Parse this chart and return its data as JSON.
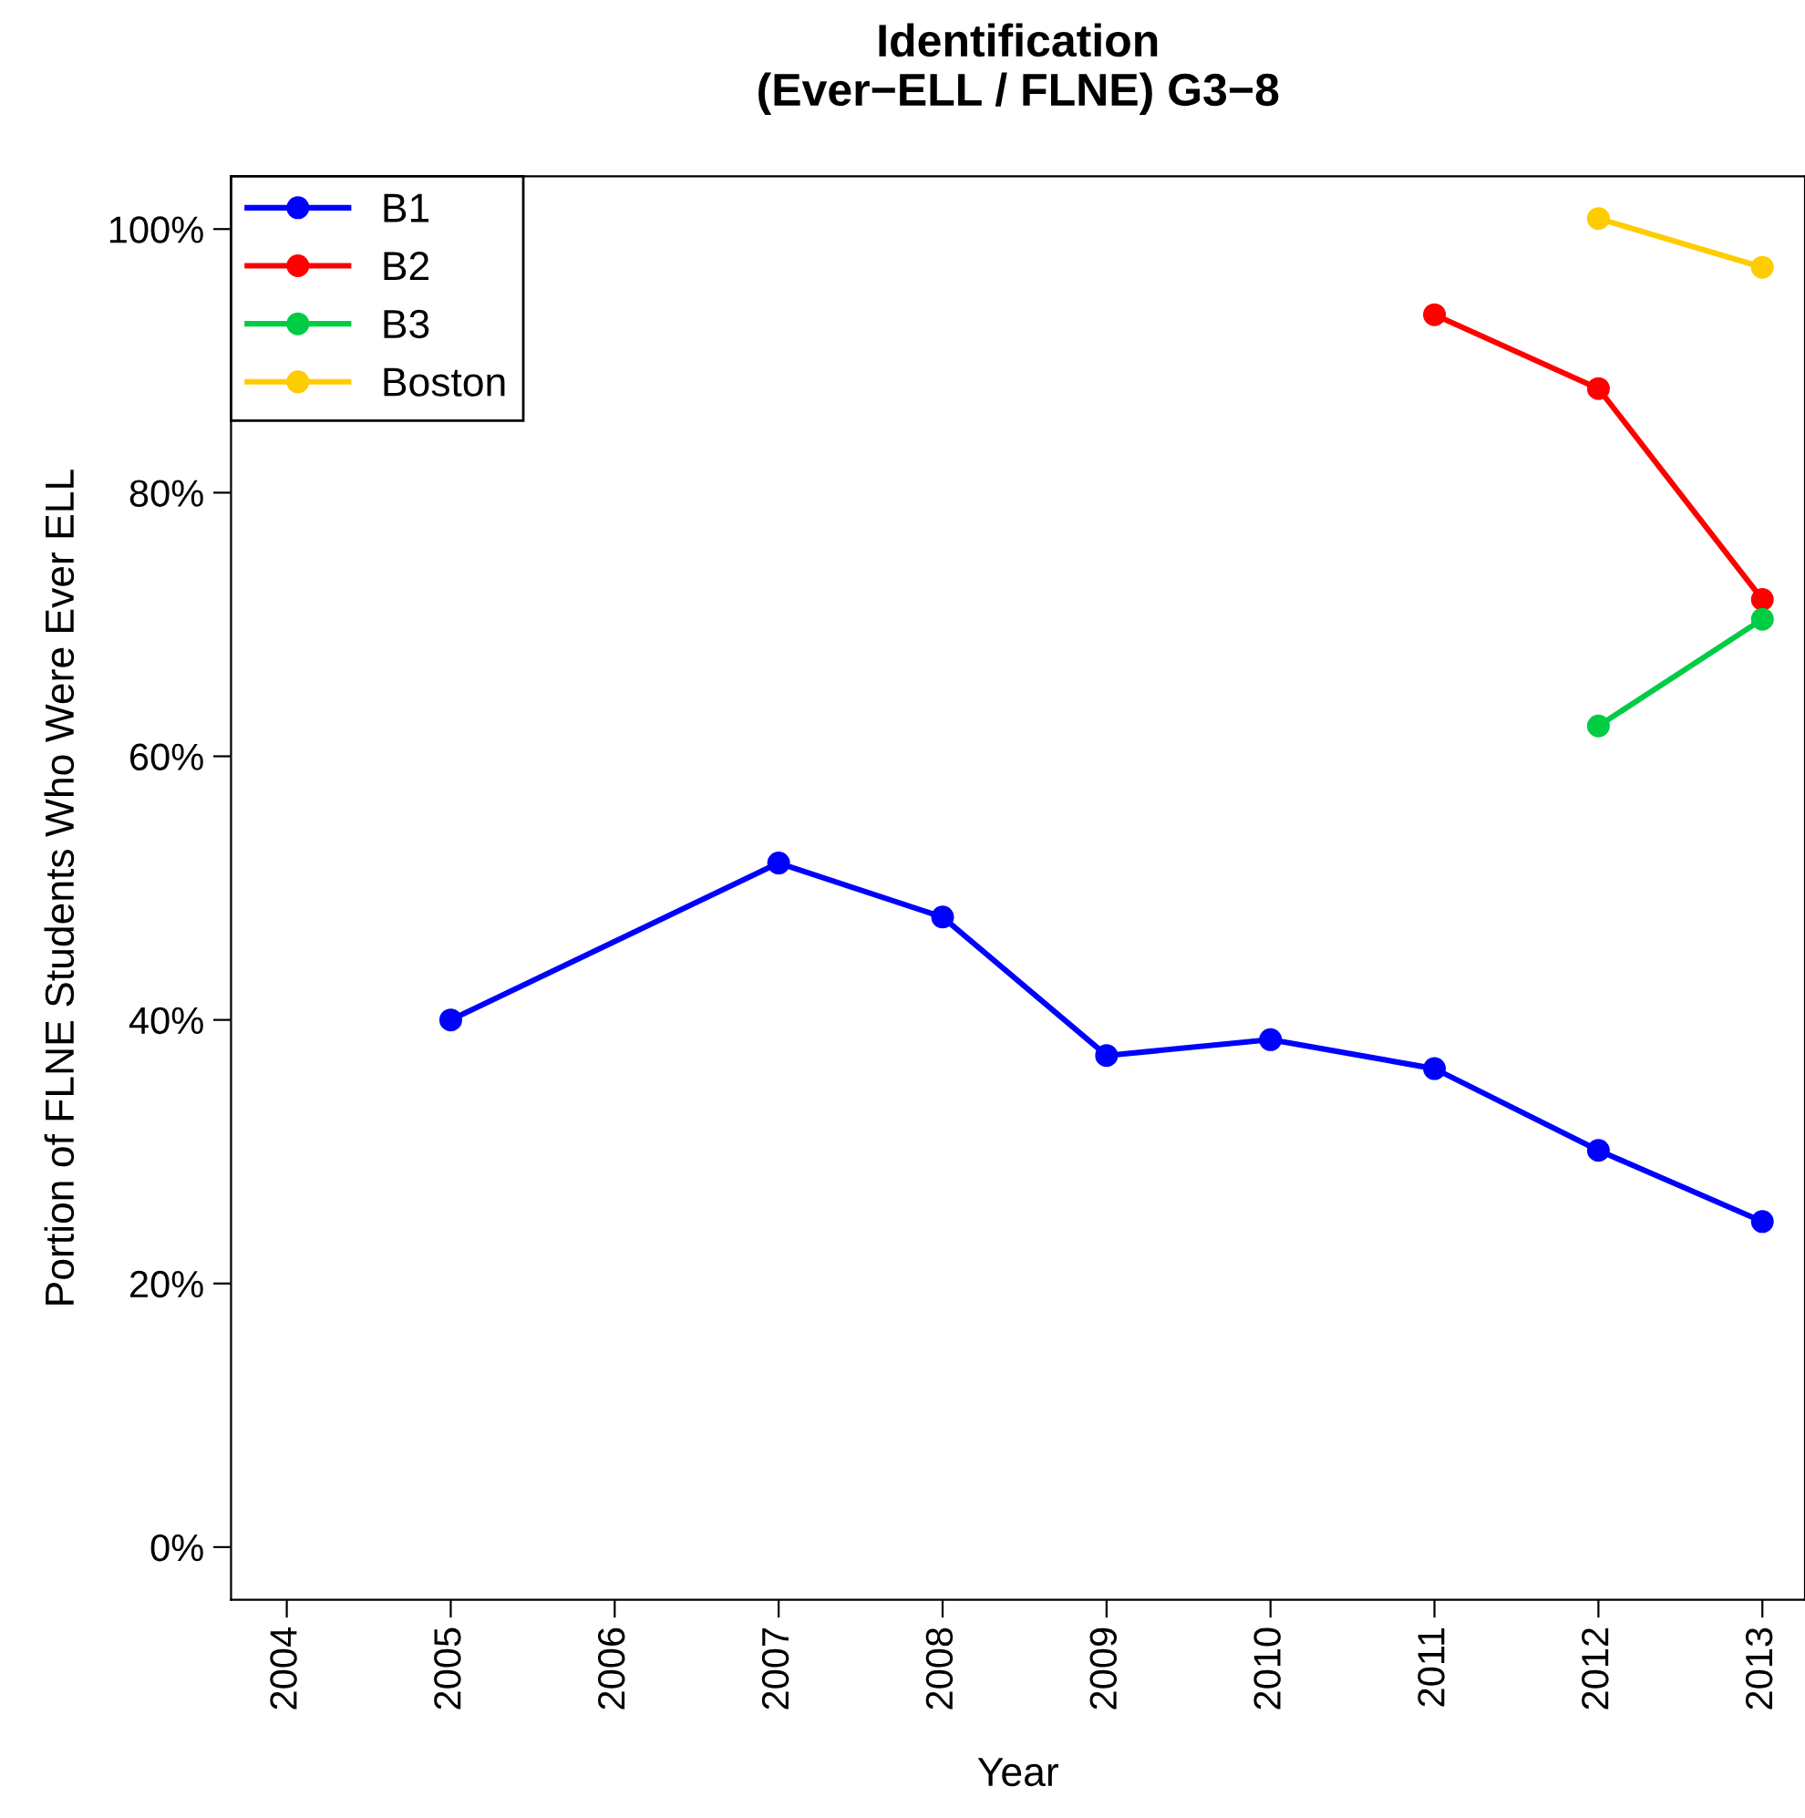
{
  "chart_data": {
    "type": "line",
    "title": "Identification\n(Ever−ELL / FLNE) G3−8",
    "xlabel": "Year",
    "ylabel": "Portion of FLNE Students Who Were Ever ELL",
    "series": [
      {
        "name": "B1",
        "color": "#0000ff",
        "x": [
          2005,
          2007,
          2008,
          2009,
          2010,
          2011,
          2012,
          2013
        ],
        "values": [
          40.0,
          51.9,
          47.8,
          37.3,
          38.5,
          36.3,
          30.1,
          24.7
        ]
      },
      {
        "name": "B2",
        "color": "#ff0000",
        "x": [
          2011,
          2012,
          2013
        ],
        "values": [
          93.5,
          87.9,
          71.9
        ]
      },
      {
        "name": "B3",
        "color": "#00cc44",
        "x": [
          2012,
          2013
        ],
        "values": [
          62.3,
          70.4
        ]
      },
      {
        "name": "Boston",
        "color": "#ffcc00",
        "x": [
          2012,
          2013
        ],
        "values": [
          100.8,
          97.1
        ]
      }
    ],
    "xlim": [
      2003.66,
      2013.26
    ],
    "xticks": [
      2004,
      2005,
      2006,
      2007,
      2008,
      2009,
      2010,
      2011,
      2012,
      2013
    ],
    "ylim": [
      -4,
      104
    ],
    "yticks": [
      {
        "value": 0,
        "label": "0%"
      },
      {
        "value": 20,
        "label": "20%"
      },
      {
        "value": 40,
        "label": "40%"
      },
      {
        "value": 60,
        "label": "60%"
      },
      {
        "value": 80,
        "label": "80%"
      },
      {
        "value": 100,
        "label": "100%"
      }
    ],
    "marker": "circle",
    "line_style": "solid",
    "legend": "top left",
    "grid": false
  }
}
